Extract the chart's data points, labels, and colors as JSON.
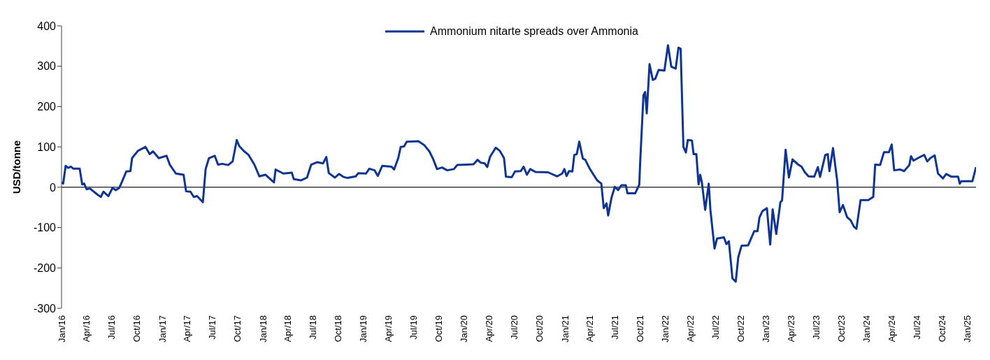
{
  "chart_data": {
    "type": "line",
    "ylabel": "USD/tonne",
    "legend": "top",
    "grid": false,
    "line_style": "solid",
    "ylim": [
      -300,
      400
    ],
    "yticks": [
      -300,
      -200,
      -100,
      0,
      100,
      200,
      300,
      400
    ],
    "xlim": [
      "2016-01-01",
      "2025-02-01"
    ],
    "xticks": [
      {
        "value": "2016-01",
        "label": "Jan/16"
      },
      {
        "value": "2016-04",
        "label": "Apr/16"
      },
      {
        "value": "2016-07",
        "label": "Jul/16"
      },
      {
        "value": "2016-10",
        "label": "Oct/16"
      },
      {
        "value": "2017-01",
        "label": "Jan/17"
      },
      {
        "value": "2017-04",
        "label": "Apr/17"
      },
      {
        "value": "2017-07",
        "label": "Jul/17"
      },
      {
        "value": "2017-10",
        "label": "Oct/17"
      },
      {
        "value": "2018-01",
        "label": "Jan/18"
      },
      {
        "value": "2018-04",
        "label": "Apr/18"
      },
      {
        "value": "2018-07",
        "label": "Jul/18"
      },
      {
        "value": "2018-10",
        "label": "Oct/18"
      },
      {
        "value": "2019-01",
        "label": "Jan/19"
      },
      {
        "value": "2019-04",
        "label": "Apr/19"
      },
      {
        "value": "2019-07",
        "label": "Jul/19"
      },
      {
        "value": "2019-10",
        "label": "Oct/19"
      },
      {
        "value": "2020-01",
        "label": "Jan/20"
      },
      {
        "value": "2020-04",
        "label": "Apr/20"
      },
      {
        "value": "2020-07",
        "label": "Jul/20"
      },
      {
        "value": "2020-10",
        "label": "Oct/20"
      },
      {
        "value": "2021-01",
        "label": "Jan/21"
      },
      {
        "value": "2021-04",
        "label": "Apr/21"
      },
      {
        "value": "2021-07",
        "label": "Jul/21"
      },
      {
        "value": "2021-10",
        "label": "Oct/21"
      },
      {
        "value": "2022-01",
        "label": "Jan/22"
      },
      {
        "value": "2022-04",
        "label": "Apr/22"
      },
      {
        "value": "2022-07",
        "label": "Jul/22"
      },
      {
        "value": "2022-10",
        "label": "Oct/22"
      },
      {
        "value": "2023-01",
        "label": "Jan/23"
      },
      {
        "value": "2023-04",
        "label": "Apr/23"
      },
      {
        "value": "2023-07",
        "label": "Jul/23"
      },
      {
        "value": "2023-10",
        "label": "Oct/23"
      },
      {
        "value": "2024-01",
        "label": "Jan/24"
      },
      {
        "value": "2024-04",
        "label": "Apr/24"
      },
      {
        "value": "2024-07",
        "label": "Jul/24"
      },
      {
        "value": "2024-10",
        "label": "Oct/24"
      },
      {
        "value": "2025-01",
        "label": "Jan/25"
      }
    ],
    "ref_lines": [
      {
        "axis": "y",
        "value": 0,
        "color": "#404040"
      }
    ],
    "x": [
      "2016-01-01",
      "2016-01-07",
      "2016-01-16",
      "2016-01-25",
      "2016-02-04",
      "2016-02-13",
      "2016-03-07",
      "2016-03-16",
      "2016-03-23",
      "2016-04-01",
      "2016-04-13",
      "2016-05-10",
      "2016-05-23",
      "2016-06-01",
      "2016-06-19",
      "2016-07-04",
      "2016-07-16",
      "2016-07-28",
      "2016-08-07",
      "2016-08-23",
      "2016-09-07",
      "2016-09-13",
      "2016-10-04",
      "2016-11-01",
      "2016-11-16",
      "2016-11-28",
      "2016-12-19",
      "2017-01-16",
      "2017-01-28",
      "2017-02-19",
      "2017-03-19",
      "2017-03-28",
      "2017-04-13",
      "2017-04-25",
      "2017-05-07",
      "2017-05-28",
      "2017-06-07",
      "2017-06-19",
      "2017-07-10",
      "2017-07-22",
      "2017-08-07",
      "2017-08-28",
      "2017-09-13",
      "2017-09-28",
      "2017-10-07",
      "2017-10-25",
      "2017-11-10",
      "2017-12-01",
      "2017-12-19",
      "2018-01-10",
      "2018-02-10",
      "2018-02-16",
      "2018-03-16",
      "2018-04-16",
      "2018-04-23",
      "2018-05-19",
      "2018-06-10",
      "2018-06-25",
      "2018-07-16",
      "2018-08-07",
      "2018-08-19",
      "2018-08-28",
      "2018-09-19",
      "2018-10-04",
      "2018-10-19",
      "2018-11-04",
      "2018-12-04",
      "2018-12-13",
      "2019-01-10",
      "2019-01-22",
      "2019-02-10",
      "2019-02-22",
      "2019-03-10",
      "2019-04-13",
      "2019-04-22",
      "2019-05-07",
      "2019-05-16",
      "2019-05-28",
      "2019-06-07",
      "2019-07-19",
      "2019-08-10",
      "2019-08-28",
      "2019-09-10",
      "2019-09-25",
      "2019-10-13",
      "2019-11-01",
      "2019-11-25",
      "2019-12-07",
      "2020-01-10",
      "2020-02-04",
      "2020-02-19",
      "2020-03-01",
      "2020-03-16",
      "2020-03-25",
      "2020-04-04",
      "2020-04-25",
      "2020-05-10",
      "2020-05-25",
      "2020-06-01",
      "2020-06-22",
      "2020-07-04",
      "2020-07-25",
      "2020-08-04",
      "2020-08-16",
      "2020-08-28",
      "2020-09-16",
      "2020-11-01",
      "2020-12-04",
      "2020-12-22",
      "2020-12-30",
      "2021-01-07",
      "2021-01-16",
      "2021-01-28",
      "2021-02-04",
      "2021-02-13",
      "2021-02-22",
      "2021-03-07",
      "2021-03-16",
      "2021-04-01",
      "2021-04-28",
      "2021-05-13",
      "2021-05-22",
      "2021-06-01",
      "2021-06-07",
      "2021-06-19",
      "2021-07-01",
      "2021-07-13",
      "2021-07-25",
      "2021-08-10",
      "2021-08-16",
      "2021-09-13",
      "2021-09-28",
      "2021-10-01",
      "2021-10-13",
      "2021-10-19",
      "2021-10-25",
      "2021-11-04",
      "2021-11-16",
      "2021-11-25",
      "2021-12-07",
      "2021-12-28",
      "2022-01-10",
      "2022-01-22",
      "2022-02-07",
      "2022-02-17",
      "2022-02-25",
      "2022-03-07",
      "2022-03-16",
      "2022-03-23",
      "2022-04-07",
      "2022-04-13",
      "2022-04-23",
      "2022-05-01",
      "2022-05-07",
      "2022-05-13",
      "2022-05-25",
      "2022-06-07",
      "2022-06-13",
      "2022-06-28",
      "2022-07-07",
      "2022-08-01",
      "2022-08-10",
      "2022-08-19",
      "2022-09-01",
      "2022-09-13",
      "2022-09-22",
      "2022-10-04",
      "2022-10-28",
      "2022-11-19",
      "2022-12-01",
      "2022-12-08",
      "2022-12-19",
      "2023-01-04",
      "2023-01-16",
      "2023-01-25",
      "2023-02-07",
      "2023-02-22",
      "2023-02-28",
      "2023-03-13",
      "2023-03-25",
      "2023-04-07",
      "2023-04-28",
      "2023-05-10",
      "2023-05-22",
      "2023-06-04",
      "2023-06-25",
      "2023-07-08",
      "2023-07-16",
      "2023-08-04",
      "2023-08-13",
      "2023-08-19",
      "2023-09-01",
      "2023-09-16",
      "2023-09-25",
      "2023-10-07",
      "2023-10-22",
      "2023-11-04",
      "2023-11-16",
      "2023-11-25",
      "2023-12-10",
      "2024-01-07",
      "2024-01-25",
      "2024-02-01",
      "2024-02-19",
      "2024-03-04",
      "2024-03-22",
      "2024-04-01",
      "2024-04-10",
      "2024-05-01",
      "2024-05-16",
      "2024-06-04",
      "2024-06-10",
      "2024-06-19",
      "2024-07-07",
      "2024-07-28",
      "2024-08-08",
      "2024-08-19",
      "2024-09-04",
      "2024-09-16",
      "2024-10-04",
      "2024-10-16",
      "2024-11-04",
      "2024-11-28",
      "2024-12-04",
      "2024-12-10",
      "2025-01-19",
      "2025-02-01"
    ],
    "series": [
      {
        "name": "Ammonium nitarte spreads over Ammonia",
        "color": "#0f3590",
        "values": [
          12,
          9,
          53,
          48,
          51,
          46,
          46,
          7,
          9,
          -5,
          -3,
          -18,
          -24,
          -11,
          -22,
          -2,
          -7,
          -2,
          13,
          39,
          40,
          72,
          90,
          100,
          82,
          89,
          72,
          78,
          56,
          34,
          31,
          -10,
          -11,
          -24,
          -22,
          -37,
          45,
          72,
          78,
          56,
          58,
          55,
          64,
          117,
          102,
          89,
          80,
          56,
          27,
          31,
          12,
          44,
          34,
          36,
          20,
          17,
          24,
          56,
          62,
          59,
          75,
          35,
          24,
          33,
          26,
          23,
          27,
          35,
          34,
          46,
          42,
          28,
          53,
          51,
          44,
          72,
          100,
          101,
          113,
          114,
          104,
          89,
          71,
          45,
          49,
          42,
          45,
          55,
          56,
          57,
          68,
          61,
          59,
          50,
          75,
          98,
          90,
          72,
          26,
          25,
          39,
          40,
          51,
          31,
          45,
          38,
          37,
          27,
          34,
          45,
          28,
          40,
          39,
          80,
          82,
          113,
          71,
          68,
          46,
          17,
          9,
          -52,
          -40,
          -70,
          -26,
          1,
          -7,
          5,
          5,
          -15,
          -15,
          7,
          60,
          228,
          236,
          183,
          305,
          266,
          269,
          291,
          289,
          352,
          299,
          294,
          346,
          343,
          100,
          86,
          117,
          116,
          82,
          82,
          7,
          31,
          12,
          -56,
          9,
          -56,
          -152,
          -127,
          -124,
          -141,
          -134,
          -226,
          -234,
          -174,
          -145,
          -144,
          -109,
          -109,
          -75,
          -59,
          -52,
          -142,
          -55,
          -116,
          -37,
          -33,
          93,
          24,
          69,
          56,
          51,
          37,
          27,
          26,
          50,
          26,
          80,
          82,
          40,
          97,
          17,
          -62,
          -44,
          -74,
          -82,
          -98,
          -103,
          -32,
          -32,
          -24,
          56,
          55,
          87,
          87,
          106,
          42,
          44,
          40,
          55,
          77,
          66,
          73,
          80,
          64,
          72,
          79,
          34,
          22,
          33,
          26,
          26,
          9,
          15,
          15,
          50
        ]
      }
    ]
  }
}
